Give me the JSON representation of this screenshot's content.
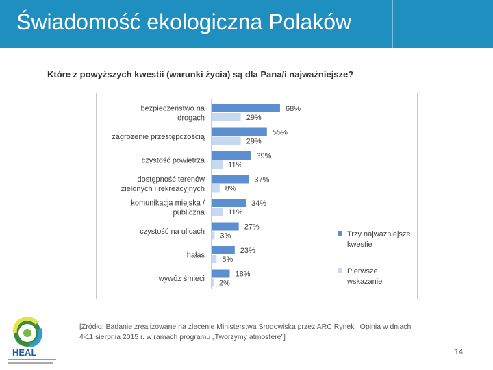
{
  "slide": {
    "title": "Świadomość ekologiczna Polaków",
    "page_number": "14",
    "source_line1": "[Źródło: Badanie zrealizowane na zlecenie Ministerstwa Środowiska przez ARC Rynek i Opinia w dniach",
    "source_line2": "4-11 sierpnia 2015 r. w ramach programu „Tworzymy atmosferę”]",
    "logo_text": "HEAL",
    "colors": {
      "header": "#1f8fc0",
      "series1": "#5b8fd0",
      "series2": "#c6d9f1"
    }
  },
  "chart_data": {
    "type": "bar",
    "orientation": "horizontal",
    "title": "Które z powyższych kwestii (warunki życia) są dla Pana/i najważniejsze?",
    "categories": [
      [
        "bezpieczeństwo na",
        "drogach"
      ],
      [
        "zagrożenie przestępczością"
      ],
      [
        "czystość powietrza"
      ],
      [
        "dostępność terenów",
        "zielonych i rekreacyjnych"
      ],
      [
        "komunikacja miejska /",
        "publiczna"
      ],
      [
        "czystość na ulicach"
      ],
      [
        "hałas"
      ],
      [
        "wywóz śmieci"
      ]
    ],
    "series": [
      {
        "name": "Trzy najważniejsze kwestie",
        "legend_lines": [
          "Trzy najważniejsze",
          "kwestie"
        ],
        "values": [
          68,
          55,
          39,
          37,
          34,
          27,
          23,
          18
        ],
        "color": "#5b8fd0"
      },
      {
        "name": "Pierwsze wskazanie",
        "legend_lines": [
          "Pierwsze",
          "wskazanie"
        ],
        "values": [
          29,
          29,
          11,
          8,
          11,
          3,
          5,
          2
        ],
        "color": "#c6d9f1"
      }
    ],
    "value_suffix": "%",
    "xlim": [
      0,
      100
    ],
    "grid": false,
    "legend_position": "right"
  }
}
